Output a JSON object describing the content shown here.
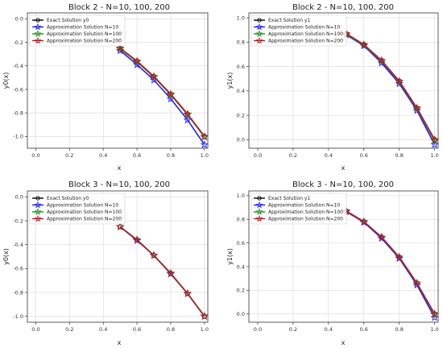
{
  "chart_data": [
    {
      "type": "line",
      "title": "Block 2 - N=10, 100, 200",
      "xlabel": "x",
      "ylabel": "y0(x)",
      "xlim": [
        -0.05,
        1.02
      ],
      "ylim": [
        -1.1,
        0.05
      ],
      "xticks": [
        0.0,
        0.2,
        0.4,
        0.6,
        0.8,
        1.0
      ],
      "yticks": [
        0.0,
        -0.2,
        -0.4,
        -0.6,
        -0.8,
        -1.0
      ],
      "tick_labels_x": [
        "0.0",
        "0.2",
        "0.4",
        "0.6",
        "0.8",
        "1.0"
      ],
      "tick_labels_y": [
        "0.0",
        "-0.2",
        "-0.4",
        "-0.6",
        "-0.8",
        "-1.0"
      ],
      "grid": true,
      "legend": "top-left",
      "x": [
        0.5,
        0.6,
        0.7,
        0.8,
        0.9,
        1.0
      ],
      "series": [
        {
          "name": "Exact Solution y0",
          "color": "#000000",
          "marker": "circle",
          "values": [
            -0.25,
            -0.36,
            -0.49,
            -0.64,
            -0.81,
            -1.0
          ]
        },
        {
          "name": "Approximation Solution N=10",
          "color": "#2222ff",
          "marker": "star",
          "values": [
            -0.27,
            -0.39,
            -0.52,
            -0.68,
            -0.86,
            -1.07
          ]
        },
        {
          "name": "Approximation Solution N=100",
          "color": "#228b22",
          "marker": "star",
          "values": [
            -0.255,
            -0.365,
            -0.495,
            -0.645,
            -0.815,
            -1.005
          ]
        },
        {
          "name": "Approximation Solution N=200",
          "color": "#b22222",
          "marker": "star",
          "values": [
            -0.25,
            -0.36,
            -0.49,
            -0.64,
            -0.81,
            -1.0
          ]
        }
      ]
    },
    {
      "type": "line",
      "title": "Block 2 - N=10, 100, 200",
      "xlabel": "x",
      "ylabel": "y1(x)",
      "xlim": [
        -0.05,
        1.02
      ],
      "ylim": [
        -0.07,
        1.04
      ],
      "xticks": [
        0.0,
        0.2,
        0.4,
        0.6,
        0.8,
        1.0
      ],
      "yticks": [
        0.0,
        0.2,
        0.4,
        0.6,
        0.8,
        1.0
      ],
      "tick_labels_x": [
        "0.0",
        "0.2",
        "0.4",
        "0.6",
        "0.8",
        "1.0"
      ],
      "tick_labels_y": [
        "0.0",
        "0.2",
        "0.4",
        "0.6",
        "0.8",
        "1.0"
      ],
      "grid": true,
      "legend": "top-left",
      "x": [
        0.5,
        0.6,
        0.7,
        0.8,
        0.9,
        1.0
      ],
      "series": [
        {
          "name": "Exact Solution y1",
          "color": "#000000",
          "marker": "circle",
          "values": [
            0.87,
            0.78,
            0.65,
            0.48,
            0.26,
            0.0
          ]
        },
        {
          "name": "Approximation Solution N=10",
          "color": "#2222ff",
          "marker": "star",
          "values": [
            0.86,
            0.77,
            0.63,
            0.46,
            0.24,
            -0.04
          ]
        },
        {
          "name": "Approximation Solution N=100",
          "color": "#228b22",
          "marker": "star",
          "values": [
            0.865,
            0.775,
            0.645,
            0.475,
            0.255,
            -0.01
          ]
        },
        {
          "name": "Approximation Solution N=200",
          "color": "#b22222",
          "marker": "star",
          "values": [
            0.87,
            0.78,
            0.65,
            0.48,
            0.26,
            0.0
          ]
        }
      ]
    },
    {
      "type": "line",
      "title": "Block 3 - N=10, 100, 200",
      "xlabel": "x",
      "ylabel": "y0(x)",
      "xlim": [
        -0.05,
        1.02
      ],
      "ylim": [
        -1.05,
        0.05
      ],
      "xticks": [
        0.0,
        0.2,
        0.4,
        0.6,
        0.8,
        1.0
      ],
      "yticks": [
        0.0,
        -0.2,
        -0.4,
        -0.6,
        -0.8,
        -1.0
      ],
      "tick_labels_x": [
        "0.0",
        "0.2",
        "0.4",
        "0.6",
        "0.8",
        "1.0"
      ],
      "tick_labels_y": [
        "0.0",
        "-0.2",
        "-0.4",
        "-0.6",
        "-0.8",
        "-1.0"
      ],
      "grid": true,
      "legend": "top-left",
      "x": [
        0.5,
        0.6,
        0.7,
        0.8,
        0.9,
        1.0
      ],
      "series": [
        {
          "name": "Exact Solution y0",
          "color": "#000000",
          "marker": "circle",
          "values": [
            -0.25,
            -0.36,
            -0.49,
            -0.64,
            -0.81,
            -1.0
          ]
        },
        {
          "name": "Approximation Solution N=10",
          "color": "#2222ff",
          "marker": "star",
          "values": [
            -0.25,
            -0.365,
            -0.49,
            -0.645,
            -0.81,
            -1.0
          ]
        },
        {
          "name": "Approximation Solution N=100",
          "color": "#228b22",
          "marker": "star",
          "values": [
            -0.25,
            -0.36,
            -0.49,
            -0.64,
            -0.81,
            -1.0
          ]
        },
        {
          "name": "Approximation Solution N=200",
          "color": "#b22222",
          "marker": "star",
          "values": [
            -0.25,
            -0.36,
            -0.49,
            -0.64,
            -0.81,
            -1.0
          ]
        }
      ]
    },
    {
      "type": "line",
      "title": "Block 3 - N=10, 100, 200",
      "xlabel": "x",
      "ylabel": "y1(x)",
      "xlim": [
        -0.05,
        1.02
      ],
      "ylim": [
        -0.07,
        1.04
      ],
      "xticks": [
        0.0,
        0.2,
        0.4,
        0.6,
        0.8,
        1.0
      ],
      "yticks": [
        0.0,
        0.2,
        0.4,
        0.6,
        0.8,
        1.0
      ],
      "tick_labels_x": [
        "0.0",
        "0.2",
        "0.4",
        "0.6",
        "0.8",
        "1.0"
      ],
      "tick_labels_y": [
        "0.0",
        "0.2",
        "0.4",
        "0.6",
        "0.8",
        "1.0"
      ],
      "grid": true,
      "legend": "top-left",
      "x": [
        0.5,
        0.6,
        0.7,
        0.8,
        0.9,
        1.0
      ],
      "series": [
        {
          "name": "Exact Solution y1",
          "color": "#000000",
          "marker": "circle",
          "values": [
            0.87,
            0.78,
            0.65,
            0.48,
            0.26,
            0.0
          ]
        },
        {
          "name": "Approximation Solution N=10",
          "color": "#2222ff",
          "marker": "star",
          "values": [
            0.865,
            0.775,
            0.64,
            0.47,
            0.245,
            -0.03
          ]
        },
        {
          "name": "Approximation Solution N=100",
          "color": "#228b22",
          "marker": "star",
          "values": [
            0.87,
            0.78,
            0.65,
            0.48,
            0.26,
            -0.005
          ]
        },
        {
          "name": "Approximation Solution N=200",
          "color": "#b22222",
          "marker": "star",
          "values": [
            0.87,
            0.78,
            0.65,
            0.48,
            0.26,
            0.0
          ]
        }
      ]
    }
  ]
}
